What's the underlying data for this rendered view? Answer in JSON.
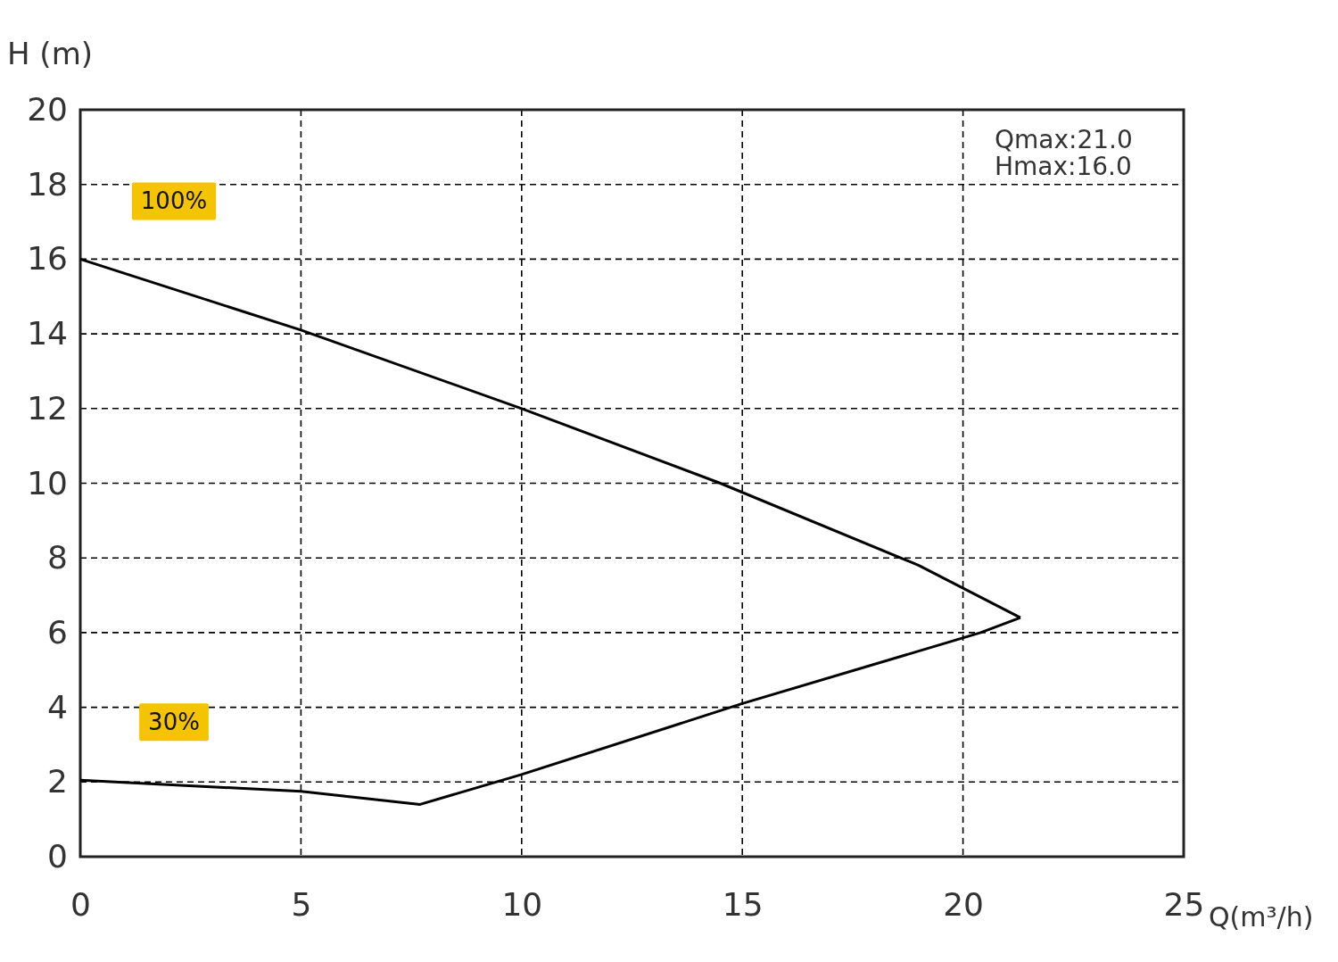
{
  "chart_data": {
    "type": "line",
    "xlabel": "Q(m³/h)",
    "ylabel": "H (m)",
    "xlim": [
      0,
      25
    ],
    "xticks": [
      0,
      5,
      10,
      15,
      20,
      25
    ],
    "ylim": [
      0,
      20
    ],
    "yticks": [
      0,
      2,
      4,
      6,
      8,
      10,
      12,
      14,
      16,
      18,
      20
    ],
    "grid": true,
    "marker": "none",
    "line_style": "solid",
    "series": [
      {
        "name": "100%",
        "color": "#000000",
        "x": [
          0,
          5,
          10,
          14.5,
          19,
          21.3
        ],
        "values": [
          16,
          14.1,
          12,
          10,
          7.8,
          6.4
        ]
      },
      {
        "name": "30%",
        "color": "#000000",
        "x": [
          0,
          5,
          7.7,
          10,
          15,
          20.4,
          21.3
        ],
        "values": [
          2.05,
          1.75,
          1.4,
          2.2,
          4.1,
          6.0,
          6.4
        ]
      }
    ],
    "annotations": [
      "Qmax:21.0",
      "Hmax:16.0"
    ]
  }
}
